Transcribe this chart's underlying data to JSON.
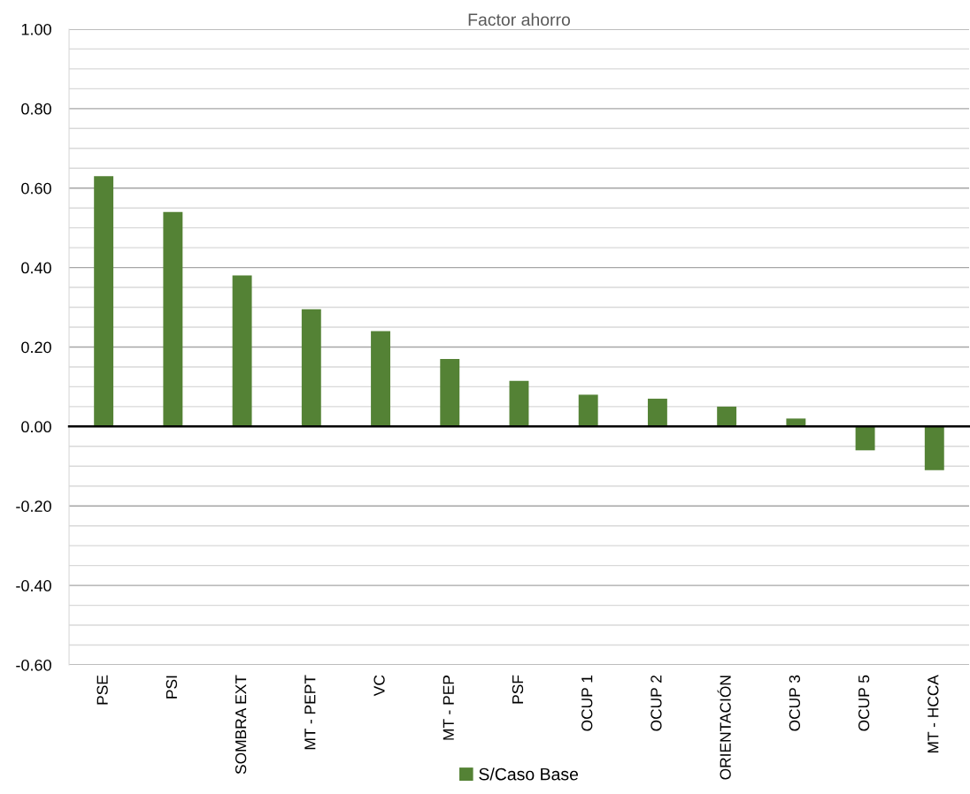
{
  "chart_data": {
    "type": "bar",
    "title": "Factor ahorro",
    "categories": [
      "PSE",
      "PSI",
      "SOMBRA EXT",
      "MT - PEPT",
      "VC",
      "MT - PEP",
      "PSF",
      "OCUP 1",
      "OCUP 2",
      "ORIENTACIÓN",
      "OCUP 3",
      "OCUP 5",
      "MT - HCCA"
    ],
    "series": [
      {
        "name": "S/Caso Base",
        "color": "#548235",
        "values": [
          0.63,
          0.54,
          0.38,
          0.295,
          0.24,
          0.17,
          0.115,
          0.08,
          0.07,
          0.05,
          0.02,
          -0.06,
          -0.11
        ]
      }
    ],
    "ylim": [
      -0.6,
      1.0
    ],
    "yticks": [
      {
        "value": -0.6,
        "label": "-0.60"
      },
      {
        "value": -0.55,
        "label": null
      },
      {
        "value": -0.5,
        "label": null
      },
      {
        "value": -0.45,
        "label": null
      },
      {
        "value": -0.4,
        "label": "-0.40"
      },
      {
        "value": -0.35,
        "label": null
      },
      {
        "value": -0.3,
        "label": null
      },
      {
        "value": -0.25,
        "label": null
      },
      {
        "value": -0.2,
        "label": "-0.20"
      },
      {
        "value": -0.15,
        "label": null
      },
      {
        "value": -0.1,
        "label": null
      },
      {
        "value": -0.05,
        "label": null
      },
      {
        "value": 0,
        "label": "0.00"
      },
      {
        "value": 0.05,
        "label": null
      },
      {
        "value": 0.1,
        "label": null
      },
      {
        "value": 0.15,
        "label": null
      },
      {
        "value": 0.2,
        "label": "0.20"
      },
      {
        "value": 0.25,
        "label": null
      },
      {
        "value": 0.3,
        "label": null
      },
      {
        "value": 0.35,
        "label": null
      },
      {
        "value": 0.4,
        "label": "0.40"
      },
      {
        "value": 0.45,
        "label": null
      },
      {
        "value": 0.5,
        "label": null
      },
      {
        "value": 0.55,
        "label": null
      },
      {
        "value": 0.6,
        "label": "0.60"
      },
      {
        "value": 0.65,
        "label": null
      },
      {
        "value": 0.7,
        "label": null
      },
      {
        "value": 0.75,
        "label": null
      },
      {
        "value": 0.8,
        "label": "0.80"
      },
      {
        "value": 0.85,
        "label": null
      },
      {
        "value": 0.9,
        "label": null
      },
      {
        "value": 0.95,
        "label": null
      },
      {
        "value": 1.0,
        "label": "1.00"
      }
    ],
    "grid": "y",
    "legend": "bottom"
  }
}
